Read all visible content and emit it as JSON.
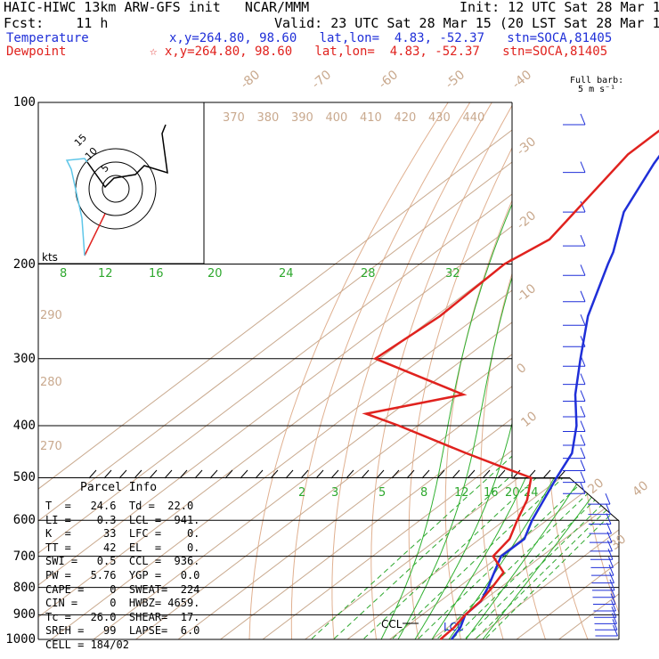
{
  "header": {
    "title": "HAIC-HIWC 13km ARW-GFS init   NCAR/MMM",
    "init": "Init: 12 UTC Sat 28 Mar 15",
    "fcst": "Fcst:    11 h",
    "valid": "Valid: 23 UTC Sat 28 Mar 15 (20 LST Sat 28 Mar 15)",
    "temp_label": "Temperature",
    "temp_loc": "x,y=264.80, 98.60   lat,lon=  4.83, -52.37   stn=SOCA,81405",
    "dew_label": "Dewpoint",
    "dew_loc": "☆ x,y=264.80, 98.60   lat,lon=  4.83, -52.37   stn=SOCA,81405"
  },
  "barb_note": {
    "line1": "Full barb:",
    "line2": "5 m s⁻¹"
  },
  "colors": {
    "temperature": "#1f2fd8",
    "dewpoint": "#e0221e",
    "adiabat": "#e0b090",
    "isotherm": "#c9a98e",
    "mixing": "#2ea82e",
    "moist": "#30b030"
  },
  "parcel_info": {
    "title": "Parcel Info",
    "rows": [
      "T  =   24.6  Td =  22.0",
      "LI =    0.3  LCL =  941.",
      "K  =     33  LFC =    0.",
      "TT =     42  EL  =    0.",
      "SWI =   0.5  CCL =  936.",
      "PW =   5.76  YGP =   0.0",
      "CAPE =    0  SWEAT=  224",
      "CIN =     0  HWBZ= 4659.",
      "Tc =   26.0  SHEAR=  17.",
      "SREH =   99  LAPSE=  6.0",
      "CELL = 184/02"
    ]
  },
  "chart_data": {
    "type": "line",
    "title": "HAIC-HIWC 13km ARW-GFS init NCAR/MMM",
    "pressure_levels": [
      "100",
      "200",
      "300",
      "400",
      "500",
      "600",
      "700",
      "800",
      "900",
      "1000"
    ],
    "isotherm_labels": [
      "-80",
      "-70",
      "-60",
      "-50",
      "-40",
      "-30",
      "-20",
      "-10",
      "0",
      "10",
      "20",
      "30",
      "40"
    ],
    "theta_labels": [
      "370",
      "380",
      "390",
      "400",
      "410",
      "420",
      "430",
      "440"
    ],
    "mixing_labels_upper": [
      "8",
      "12",
      "16",
      "20",
      "24",
      "28",
      "32"
    ],
    "mixing_labels_lower": [
      "2",
      "3",
      "5",
      "8",
      "12",
      "16",
      "20",
      "24"
    ],
    "adiabat_labels": [
      "290",
      "280",
      "270"
    ],
    "annotations": [
      "CCL",
      "LCL"
    ],
    "hodograph": {
      "ring_labels": [
        "15",
        "10",
        "5"
      ],
      "units": "kts"
    },
    "series": [
      {
        "name": "Temperature",
        "p": [
          100,
          130,
          160,
          190,
          200,
          250,
          300,
          350,
          400,
          450,
          500,
          600,
          650,
          700,
          750,
          800,
          850,
          900,
          950,
          1000
        ],
        "t": [
          -84.5,
          -76,
          -68,
          -58,
          -55.5,
          -44,
          -32.5,
          -22.5,
          -12.5,
          -5,
          -1,
          6.5,
          10.5,
          10.4,
          13.8,
          17,
          19.7,
          20.2,
          23,
          24.6
        ]
      },
      {
        "name": "Dewpoint",
        "p": [
          100,
          125,
          150,
          180,
          200,
          250,
          300,
          350,
          380,
          400,
          450,
          480,
          500,
          550,
          600,
          650,
          700,
          750,
          800,
          850,
          900,
          950,
          1000
        ],
        "td": [
          -85,
          -85,
          -81,
          -77,
          -80,
          -79,
          -81,
          -49,
          -66,
          -54.5,
          -30,
          -16,
          -7,
          -1,
          3,
          7,
          8.5,
          16,
          18,
          19.6,
          20.2,
          21.5,
          22
        ]
      }
    ]
  }
}
